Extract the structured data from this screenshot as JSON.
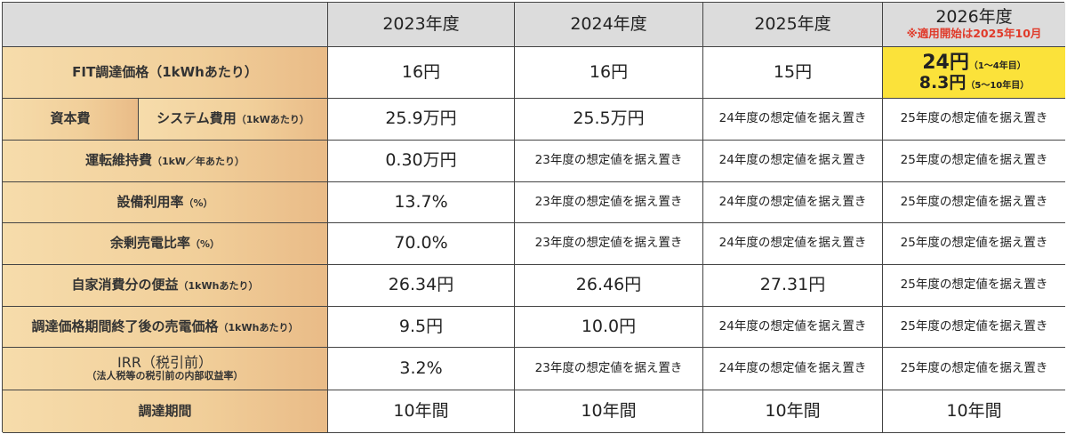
{
  "header": {
    "years": [
      "2023年度",
      "2024年度",
      "2025年度",
      "2026年度"
    ],
    "note_2026": "※適用開始は2025年10月"
  },
  "colors": {
    "highlight": "#fbe23a",
    "note": "#e03a2a",
    "header_bg": "#dcdcdc",
    "label_bg": "#f1cf9a"
  },
  "rows": [
    {
      "label": "FIT調達価格",
      "unit": "（1kWhあたり）",
      "values": [
        "16円",
        "16円",
        "15円"
      ],
      "v2026": {
        "main1": "24円",
        "sub1": "（1～4年目）",
        "main2": "8.3円",
        "sub2": "（5～10年目）"
      }
    },
    {
      "group": "資本費",
      "label": "システム費用",
      "unit": "（1kWあたり）",
      "values": [
        "25.9万円",
        "25.5万円",
        "24年度の想定値を据え置き",
        "25年度の想定値を据え置き"
      ]
    },
    {
      "label": "運転維持費",
      "unit": "（1kW／年あたり）",
      "values": [
        "0.30万円",
        "23年度の想定値を据え置き",
        "24年度の想定値を据え置き",
        "25年度の想定値を据え置き"
      ]
    },
    {
      "label": "設備利用率",
      "unit": "（%）",
      "values": [
        "13.7%",
        "23年度の想定値を据え置き",
        "24年度の想定値を据え置き",
        "25年度の想定値を据え置き"
      ]
    },
    {
      "label": "余剰売電比率",
      "unit": "（%）",
      "values": [
        "70.0%",
        "23年度の想定値を据え置き",
        "24年度の想定値を据え置き",
        "25年度の想定値を据え置き"
      ]
    },
    {
      "label": "自家消費分の便益",
      "unit": "（1kWhあたり）",
      "values": [
        "26.34円",
        "26.46円",
        "27.31円",
        "25年度の想定値を据え置き"
      ]
    },
    {
      "label": "調達価格期間終了後の売電価格",
      "unit": "（1kWhあたり）",
      "values": [
        "9.5円",
        "10.0円",
        "24年度の想定値を据え置き",
        "25年度の想定値を据え置き"
      ]
    },
    {
      "label": "IRR（税引前）",
      "unit": "（法人税等の税引前の内部収益率）",
      "values": [
        "3.2%",
        "23年度の想定値を据え置き",
        "24年度の想定値を据え置き",
        "25年度の想定値を据え置き"
      ]
    },
    {
      "label": "調達期間",
      "values": [
        "10年間",
        "10年間",
        "10年間",
        "10年間"
      ]
    }
  ]
}
